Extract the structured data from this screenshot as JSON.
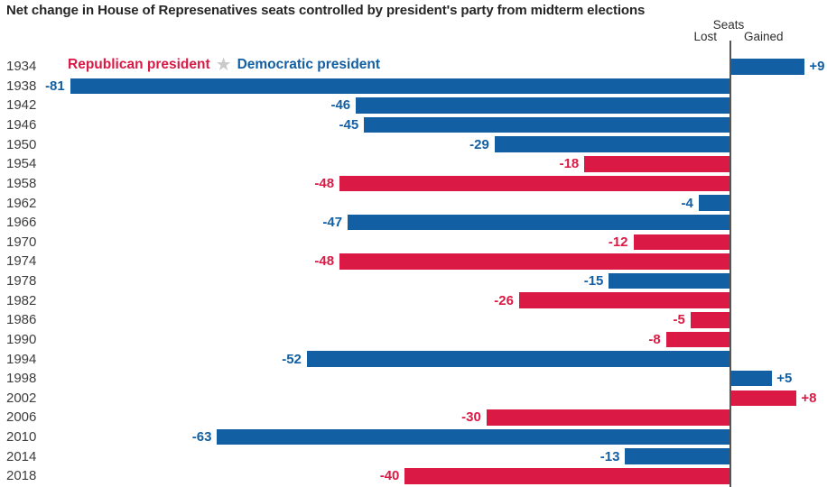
{
  "title": "Net change in House of Represenatives seats controlled by president's party from midterm elections",
  "axis_header": {
    "seats": "Seats",
    "lost": "Lost",
    "gained": "Gained"
  },
  "legend": {
    "republican_label": "Republican president",
    "democratic_label": "Democratic president",
    "star_icon": "★"
  },
  "colors": {
    "republican": "#da1a45",
    "democratic": "#135fa3",
    "axis_line": "#555555",
    "year_text": "#3d3d3d",
    "title_text": "#262626",
    "header_text": "#2e2e2e",
    "star": "#c9c9c9",
    "background": "#ffffff"
  },
  "chart_data": {
    "type": "bar",
    "orientation": "horizontal",
    "title": "Net change in House of Represenatives seats controlled by president's party from midterm elections",
    "xlabel": "Seats",
    "axis_annotations": {
      "negative_side": "Lost",
      "positive_side": "Gained"
    },
    "xlim": [
      -90,
      12
    ],
    "grid": false,
    "legend_position": "top-left-inside",
    "categories": [
      "1934",
      "1938",
      "1942",
      "1946",
      "1950",
      "1954",
      "1958",
      "1962",
      "1966",
      "1970",
      "1974",
      "1978",
      "1982",
      "1986",
      "1990",
      "1994",
      "1998",
      "2002",
      "2006",
      "2010",
      "2014",
      "2018"
    ],
    "series": [
      {
        "name": "Net seat change for president's party",
        "values": [
          9,
          -81,
          -46,
          -45,
          -29,
          -18,
          -48,
          -4,
          -47,
          -12,
          -48,
          -15,
          -26,
          -5,
          -8,
          -52,
          5,
          8,
          -30,
          -63,
          -13,
          -40
        ]
      }
    ],
    "labels": [
      "+9",
      "-81",
      "-46",
      "-45",
      "-29",
      "-18",
      "-48",
      "-4",
      "-47",
      "-12",
      "-48",
      "-15",
      "-26",
      "-5",
      "-8",
      "-52",
      "+5",
      "+8",
      "-30",
      "-63",
      "-13",
      "-40"
    ],
    "parties": [
      "Democratic",
      "Democratic",
      "Democratic",
      "Democratic",
      "Democratic",
      "Republican",
      "Republican",
      "Democratic",
      "Democratic",
      "Republican",
      "Republican",
      "Democratic",
      "Republican",
      "Republican",
      "Republican",
      "Democratic",
      "Democratic",
      "Republican",
      "Republican",
      "Democratic",
      "Democratic",
      "Republican"
    ]
  }
}
